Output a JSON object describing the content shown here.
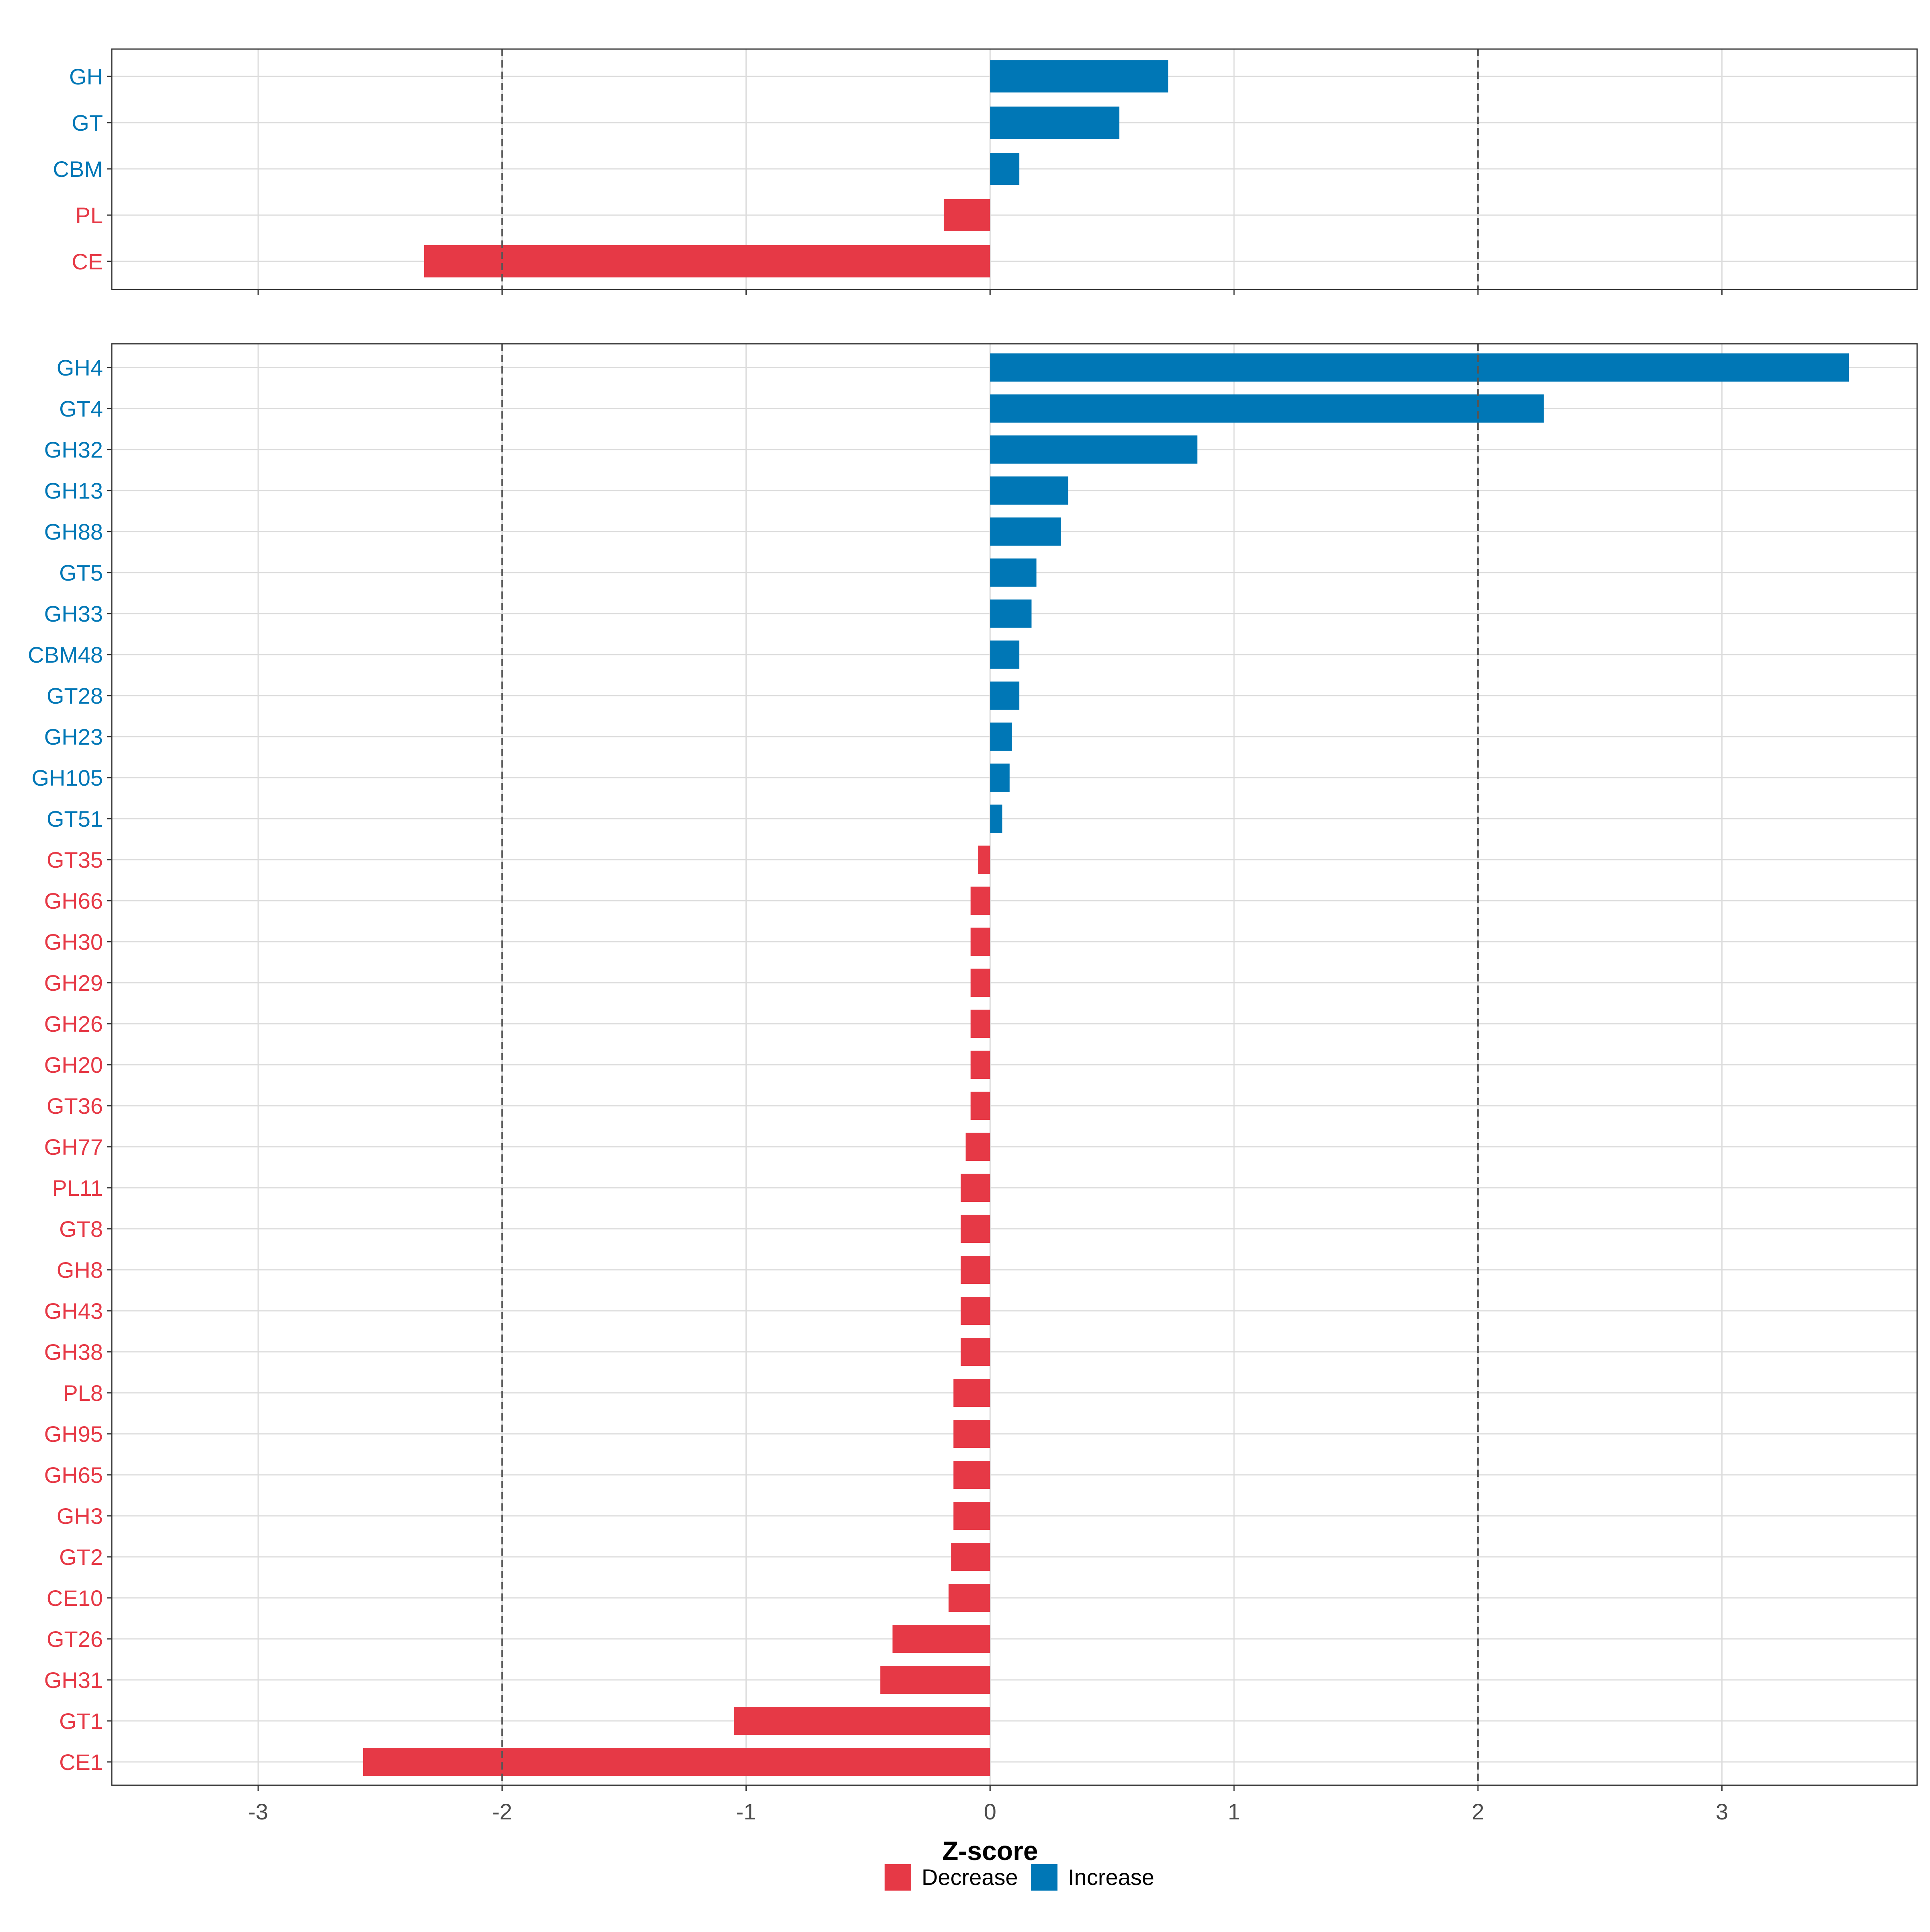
{
  "colors": {
    "decrease": "#E63946",
    "increase": "#0077B6"
  },
  "chart_data": [
    {
      "type": "bar",
      "orientation": "horizontal",
      "panel": "top",
      "categories": [
        "GH",
        "GT",
        "CBM",
        "PL",
        "CE"
      ],
      "values": [
        0.73,
        0.53,
        0.12,
        -0.19,
        -2.32
      ],
      "xlim": [
        -3.6,
        3.8
      ],
      "grid": true,
      "reference_lines": [
        -2,
        2
      ]
    },
    {
      "type": "bar",
      "orientation": "horizontal",
      "panel": "bottom",
      "categories": [
        "GH4",
        "GT4",
        "GH32",
        "GH13",
        "GH88",
        "GT5",
        "GH33",
        "CBM48",
        "GT28",
        "GH23",
        "GH105",
        "GT51",
        "GT35",
        "GH66",
        "GH30",
        "GH29",
        "GH26",
        "GH20",
        "GT36",
        "GH77",
        "PL11",
        "GT8",
        "GH8",
        "GH43",
        "GH38",
        "PL8",
        "GH95",
        "GH65",
        "GH3",
        "GT2",
        "CE10",
        "GT26",
        "GH31",
        "GT1",
        "CE1"
      ],
      "values": [
        3.52,
        2.27,
        0.85,
        0.32,
        0.29,
        0.19,
        0.17,
        0.12,
        0.12,
        0.09,
        0.08,
        0.05,
        -0.05,
        -0.08,
        -0.08,
        -0.08,
        -0.08,
        -0.08,
        -0.08,
        -0.1,
        -0.12,
        -0.12,
        -0.12,
        -0.12,
        -0.12,
        -0.15,
        -0.15,
        -0.15,
        -0.15,
        -0.16,
        -0.17,
        -0.4,
        -0.45,
        -1.05,
        -2.57
      ],
      "xlim": [
        -3.6,
        3.8
      ],
      "grid": true,
      "reference_lines": [
        -2,
        2
      ],
      "x_ticks": [
        -3,
        -2,
        -1,
        0,
        1,
        2,
        3
      ],
      "x_tick_labels": [
        "-3",
        "-2",
        "-1",
        "0",
        "1",
        "2",
        "3"
      ],
      "xlabel": "Z-score"
    }
  ],
  "legend": {
    "position": "bottom",
    "items": [
      {
        "label": "Decrease",
        "color": "#E63946"
      },
      {
        "label": "Increase",
        "color": "#0077B6"
      }
    ]
  }
}
